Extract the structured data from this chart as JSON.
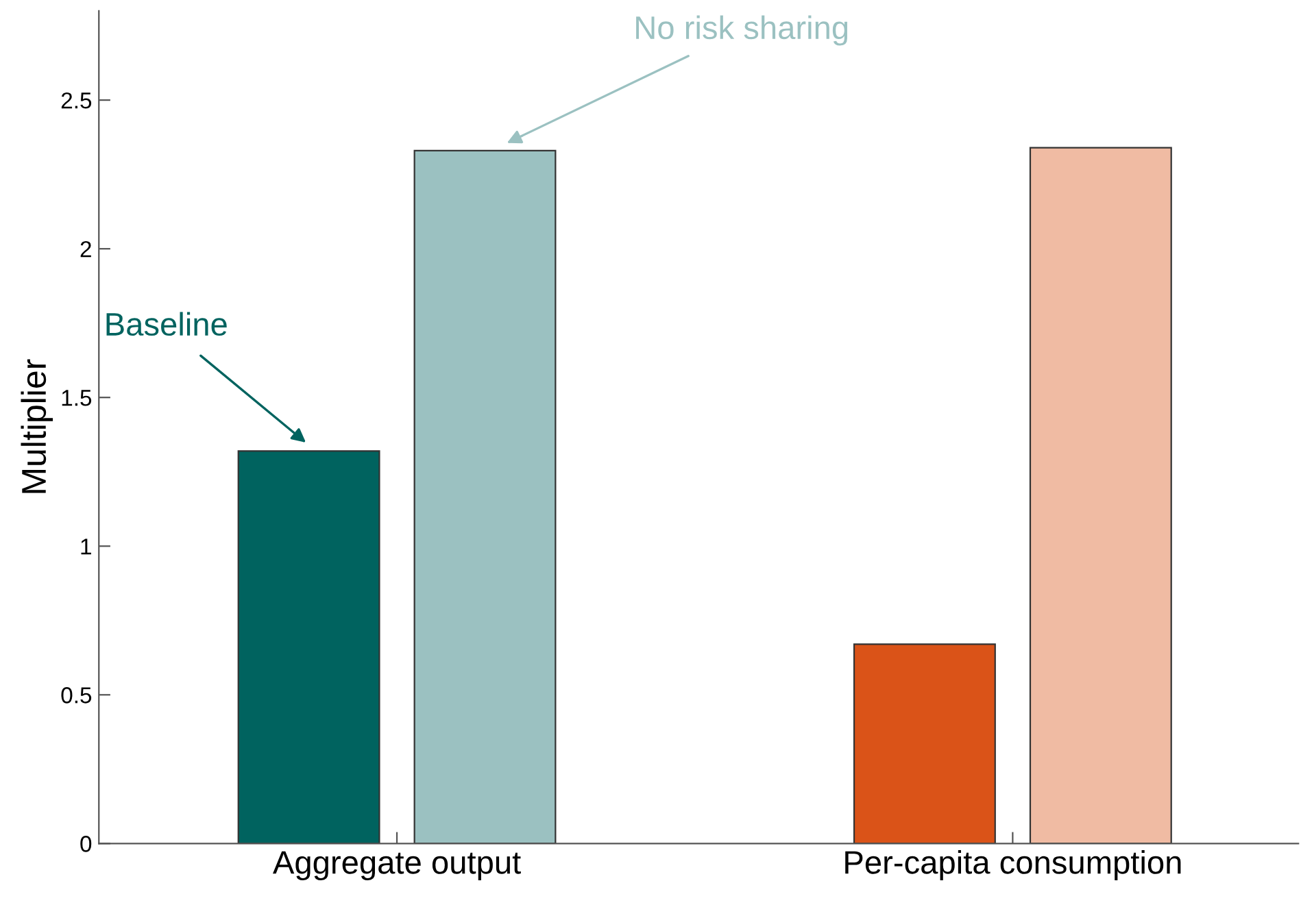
{
  "chart_data": {
    "type": "bar",
    "ylabel": "Multiplier",
    "categories": [
      "Aggregate output",
      "Per-capita consumption"
    ],
    "series": [
      {
        "name": "Baseline",
        "color": "#00635f",
        "colors": [
          "#00635f",
          "#da5318"
        ],
        "values": [
          1.32,
          0.67
        ]
      },
      {
        "name": "No risk sharing",
        "color": "#9bc1c1",
        "colors": [
          "#9bc1c1",
          "#f0bba3"
        ],
        "values": [
          2.33,
          2.34
        ]
      }
    ],
    "ylim": [
      0,
      2.8
    ],
    "yticks": [
      0,
      0.5,
      1,
      1.5,
      2,
      2.5
    ],
    "grid": false,
    "legend": false
  }
}
